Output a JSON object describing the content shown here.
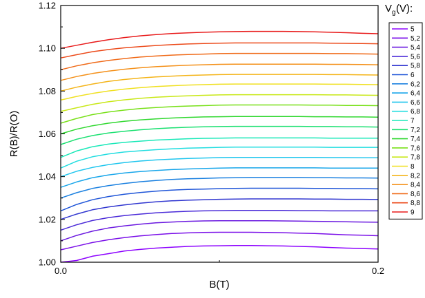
{
  "chart_data": {
    "type": "line",
    "xlabel": "B(T)",
    "ylabel": "R(B)/R(O)",
    "xlim": [
      0,
      0.2
    ],
    "ylim": [
      1.0,
      1.12
    ],
    "xticks": [
      {
        "value": 0,
        "label": "0.0"
      },
      {
        "value": 0.2,
        "label": "0.2"
      }
    ],
    "x_minor_ticks": [
      0.1
    ],
    "yticks": [
      {
        "value": 1.0,
        "label": "1.00"
      },
      {
        "value": 1.02,
        "label": "1.02"
      },
      {
        "value": 1.04,
        "label": "1.04"
      },
      {
        "value": 1.06,
        "label": "1.06"
      },
      {
        "value": 1.08,
        "label": "1.08"
      },
      {
        "value": 1.1,
        "label": "1.10"
      },
      {
        "value": 1.12,
        "label": "1.12"
      }
    ],
    "y_minor_ticks": [
      1.01,
      1.03,
      1.05,
      1.07,
      1.09,
      1.11
    ],
    "grid": false,
    "legend": {
      "title_main": "V",
      "title_sub": "g",
      "title_unit": " (V):",
      "placement": "right"
    },
    "x": [
      0.0,
      0.01,
      0.02,
      0.03,
      0.04,
      0.05,
      0.06,
      0.07,
      0.08,
      0.09,
      0.1,
      0.11,
      0.12,
      0.13,
      0.14,
      0.15,
      0.16,
      0.17,
      0.18,
      0.19,
      0.2
    ],
    "series": [
      {
        "name": "5",
        "color": "#8c00ff",
        "values": [
          1.0,
          1.0008,
          1.0028,
          1.004,
          1.0052,
          1.006,
          1.0066,
          1.007,
          1.0074,
          1.0076,
          1.0077,
          1.0078,
          1.0078,
          1.0077,
          1.0076,
          1.0074,
          1.0072,
          1.0069,
          1.0066,
          1.0064,
          1.0062
        ]
      },
      {
        "name": "5,2",
        "color": "#7a0fe8",
        "values": [
          1.0058,
          1.0075,
          1.0092,
          1.0105,
          1.0115,
          1.0123,
          1.0129,
          1.0134,
          1.0137,
          1.0139,
          1.014,
          1.014,
          1.014,
          1.0139,
          1.0138,
          1.0136,
          1.0134,
          1.0131,
          1.0128,
          1.0126,
          1.0124
        ]
      },
      {
        "name": "5,4",
        "color": "#6a18e0",
        "values": [
          1.01,
          1.0125,
          1.0145,
          1.016,
          1.017,
          1.0178,
          1.0184,
          1.0188,
          1.0191,
          1.0193,
          1.0194,
          1.0194,
          1.0194,
          1.0194,
          1.0193,
          1.0192,
          1.0191,
          1.019,
          1.0189,
          1.0188,
          1.0187
        ]
      },
      {
        "name": "5,6",
        "color": "#4a2ad8",
        "values": [
          1.015,
          1.0175,
          1.0195,
          1.0208,
          1.0218,
          1.0225,
          1.0231,
          1.0235,
          1.0238,
          1.024,
          1.0241,
          1.0242,
          1.0242,
          1.0242,
          1.0242,
          1.0241,
          1.0241,
          1.024,
          1.024,
          1.024,
          1.024
        ]
      },
      {
        "name": "5,8",
        "color": "#3036d0",
        "values": [
          1.02,
          1.0225,
          1.0245,
          1.0258,
          1.0268,
          1.0276,
          1.0282,
          1.0287,
          1.029,
          1.0292,
          1.0294,
          1.0295,
          1.0296,
          1.0296,
          1.0296,
          1.0296,
          1.0295,
          1.0295,
          1.0294,
          1.0294,
          1.0293
        ]
      },
      {
        "name": "6",
        "color": "#1f55d8",
        "values": [
          1.024,
          1.027,
          1.0292,
          1.0307,
          1.0318,
          1.0326,
          1.0332,
          1.0337,
          1.034,
          1.0342,
          1.0344,
          1.0345,
          1.0346,
          1.0346,
          1.0346,
          1.0346,
          1.0345,
          1.0345,
          1.0344,
          1.0344,
          1.0343
        ]
      },
      {
        "name": "6,2",
        "color": "#1a80e0",
        "values": [
          1.03,
          1.0325,
          1.0345,
          1.0358,
          1.0368,
          1.0376,
          1.0382,
          1.0387,
          1.039,
          1.0392,
          1.0394,
          1.0395,
          1.0396,
          1.0396,
          1.0396,
          1.0396,
          1.0395,
          1.0395,
          1.0394,
          1.0394,
          1.0393
        ]
      },
      {
        "name": "6,4",
        "color": "#18a6ea",
        "values": [
          1.035,
          1.0375,
          1.0395,
          1.0408,
          1.0417,
          1.0424,
          1.0429,
          1.0433,
          1.0436,
          1.0438,
          1.044,
          1.0441,
          1.0441,
          1.0441,
          1.0441,
          1.0441,
          1.0441,
          1.044,
          1.044,
          1.044,
          1.044
        ]
      },
      {
        "name": "6,6",
        "color": "#20c6ee",
        "values": [
          1.04,
          1.0425,
          1.0443,
          1.0456,
          1.0466,
          1.0473,
          1.0478,
          1.0482,
          1.0485,
          1.0487,
          1.0489,
          1.049,
          1.049,
          1.049,
          1.049,
          1.049,
          1.049,
          1.0489,
          1.0489,
          1.0488,
          1.0488
        ]
      },
      {
        "name": "6,8",
        "color": "#22dde0",
        "values": [
          1.044,
          1.0472,
          1.0493,
          1.0506,
          1.0515,
          1.0521,
          1.0526,
          1.053,
          1.0533,
          1.0535,
          1.0537,
          1.0538,
          1.0538,
          1.0538,
          1.0538,
          1.0538,
          1.0538,
          1.0537,
          1.0537,
          1.0537,
          1.0537
        ]
      },
      {
        "name": "7",
        "color": "#18e8b8",
        "values": [
          1.049,
          1.052,
          1.054,
          1.0552,
          1.056,
          1.0566,
          1.0571,
          1.0574,
          1.0577,
          1.0579,
          1.058,
          1.0581,
          1.0581,
          1.0581,
          1.0581,
          1.0581,
          1.0581,
          1.058,
          1.058,
          1.058,
          1.058
        ]
      },
      {
        "name": "7,2",
        "color": "#1ae070",
        "values": [
          1.055,
          1.0575,
          1.0592,
          1.0604,
          1.0612,
          1.0619,
          1.0624,
          1.0628,
          1.0631,
          1.0633,
          1.0634,
          1.0635,
          1.0635,
          1.0635,
          1.0635,
          1.0635,
          1.0634,
          1.0634,
          1.0633,
          1.0633,
          1.0632
        ]
      },
      {
        "name": "7,4",
        "color": "#30d830",
        "values": [
          1.06,
          1.0622,
          1.0638,
          1.065,
          1.0659,
          1.0665,
          1.067,
          1.0674,
          1.0677,
          1.0679,
          1.068,
          1.0681,
          1.0681,
          1.0681,
          1.0681,
          1.0681,
          1.068,
          1.068,
          1.0679,
          1.0679,
          1.0678
        ]
      },
      {
        "name": "7,6",
        "color": "#78e018",
        "values": [
          1.065,
          1.0672,
          1.069,
          1.0702,
          1.0711,
          1.0718,
          1.0723,
          1.0727,
          1.073,
          1.0732,
          1.0734,
          1.0735,
          1.0735,
          1.0735,
          1.0735,
          1.0735,
          1.0734,
          1.0734,
          1.0733,
          1.0733,
          1.0732
        ]
      },
      {
        "name": "7,8",
        "color": "#c8e816",
        "values": [
          1.0705,
          1.0722,
          1.0738,
          1.075,
          1.0759,
          1.0766,
          1.0771,
          1.0775,
          1.0778,
          1.078,
          1.0782,
          1.0783,
          1.0783,
          1.0783,
          1.0783,
          1.0783,
          1.0783,
          1.0782,
          1.0782,
          1.0781,
          1.078
        ]
      },
      {
        "name": "8",
        "color": "#f0e020",
        "values": [
          1.0758,
          1.0775,
          1.0789,
          1.08,
          1.0809,
          1.0816,
          1.0821,
          1.0825,
          1.0828,
          1.083,
          1.0832,
          1.0833,
          1.0833,
          1.0833,
          1.0833,
          1.0833,
          1.0833,
          1.0832,
          1.0832,
          1.0831,
          1.083
        ]
      },
      {
        "name": "8,2",
        "color": "#f4b418",
        "values": [
          1.08,
          1.0818,
          1.0833,
          1.0845,
          1.0854,
          1.0861,
          1.0866,
          1.087,
          1.0873,
          1.0875,
          1.0877,
          1.0878,
          1.0878,
          1.0878,
          1.0878,
          1.0878,
          1.0878,
          1.0877,
          1.0877,
          1.0876,
          1.0875
        ]
      },
      {
        "name": "8,4",
        "color": "#f49018",
        "values": [
          1.085,
          1.0868,
          1.0882,
          1.0893,
          1.0902,
          1.0909,
          1.0914,
          1.0918,
          1.0921,
          1.0923,
          1.0925,
          1.0926,
          1.0926,
          1.0926,
          1.0926,
          1.0926,
          1.0926,
          1.0925,
          1.0925,
          1.0924,
          1.0923
        ]
      },
      {
        "name": "8,6",
        "color": "#f06a18",
        "values": [
          1.09,
          1.0918,
          1.0932,
          1.0943,
          1.0952,
          1.0959,
          1.0964,
          1.0968,
          1.0971,
          1.0973,
          1.0975,
          1.0976,
          1.0976,
          1.0976,
          1.0976,
          1.0976,
          1.0976,
          1.0975,
          1.0975,
          1.0974,
          1.0973
        ]
      },
      {
        "name": "8,8",
        "color": "#ec4a1a",
        "values": [
          1.0955,
          1.097,
          1.0984,
          1.0994,
          1.1002,
          1.1008,
          1.1013,
          1.1017,
          1.102,
          1.1022,
          1.1024,
          1.1025,
          1.1025,
          1.1025,
          1.1025,
          1.1025,
          1.1025,
          1.1024,
          1.1023,
          1.1022,
          1.1021
        ]
      },
      {
        "name": "9",
        "color": "#e81a1a",
        "values": [
          1.1,
          1.1014,
          1.1028,
          1.104,
          1.105,
          1.1058,
          1.1064,
          1.1069,
          1.1072,
          1.1075,
          1.1077,
          1.1078,
          1.1079,
          1.1079,
          1.1079,
          1.1078,
          1.1077,
          1.1075,
          1.1073,
          1.107,
          1.1068
        ]
      }
    ]
  }
}
